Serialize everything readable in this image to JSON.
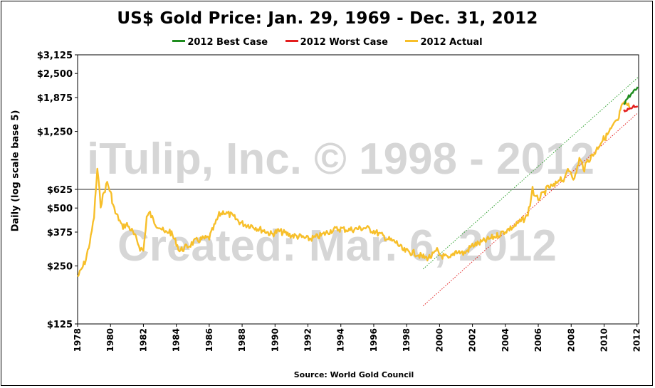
{
  "chart_data": {
    "type": "line",
    "title": "US$ Gold Price: Jan. 29, 1969 - Dec. 31, 2012",
    "ylabel": "Daily (log scale base 5)",
    "xlabel": "",
    "source": "Source: World Gold Council",
    "y_scale": "log5",
    "ylim": [
      125,
      3125
    ],
    "xlim": [
      1978,
      2012.1
    ],
    "y_ticks": [
      {
        "value": 125,
        "label": "$125"
      },
      {
        "value": 250,
        "label": "$250"
      },
      {
        "value": 375,
        "label": "$375"
      },
      {
        "value": 500,
        "label": "$500"
      },
      {
        "value": 625,
        "label": "$625"
      },
      {
        "value": 1250,
        "label": "$1,250"
      },
      {
        "value": 1875,
        "label": "$1,875"
      },
      {
        "value": 2500,
        "label": "$2,500"
      },
      {
        "value": 3125,
        "label": "$3,125"
      }
    ],
    "x_ticks": [
      "1978",
      "1980",
      "1982",
      "1984",
      "1986",
      "1988",
      "1990",
      "1992",
      "1994",
      "1996",
      "1998",
      "2000",
      "2002",
      "2004",
      "2006",
      "2008",
      "2010",
      "2012"
    ],
    "reference_line": {
      "value": 625
    },
    "legend": [
      {
        "name": "2012 Best Case",
        "color": "#1e8c1e"
      },
      {
        "name": "2012 Worst Case",
        "color": "#e31e1e"
      },
      {
        "name": "2012 Actual",
        "color": "#f7bf2a"
      }
    ],
    "series": [
      {
        "name": "2012 Actual",
        "color": "#f7bf2a",
        "x": [
          1978.0,
          1978.2,
          1978.5,
          1978.8,
          1979.0,
          1979.2,
          1979.4,
          1979.6,
          1979.8,
          1979.95,
          1980.05,
          1980.15,
          1980.3,
          1980.5,
          1980.7,
          1981.0,
          1981.3,
          1981.6,
          1981.8,
          1982.0,
          1982.2,
          1982.4,
          1982.6,
          1982.8,
          1983.0,
          1983.3,
          1983.6,
          1984.0,
          1984.2,
          1984.5,
          1984.8,
          1985.0,
          1985.3,
          1985.6,
          1986.0,
          1986.3,
          1986.6,
          1986.9,
          1987.0,
          1987.3,
          1987.6,
          1987.9,
          1988.2,
          1988.6,
          1989.0,
          1989.4,
          1989.8,
          1990.2,
          1990.6,
          1991.0,
          1991.5,
          1992.0,
          1992.4,
          1992.8,
          1993.2,
          1993.5,
          1994.0,
          1994.5,
          1995.0,
          1995.5,
          1996.0,
          1996.5,
          1997.0,
          1997.4,
          1997.8,
          1998.2,
          1998.6,
          1998.9,
          1999.2,
          1999.5,
          1999.7,
          1999.85,
          2000.0,
          2000.3,
          2000.6,
          2001.0,
          2001.5,
          2002.0,
          2002.5,
          2003.0,
          2003.5,
          2004.0,
          2004.5,
          2005.0,
          2005.3,
          2005.5,
          2005.65,
          2005.8,
          2006.0,
          2006.3,
          2006.6,
          2007.0,
          2007.3,
          2007.6,
          2007.8,
          2008.0,
          2008.2,
          2008.5,
          2008.8,
          2009.0,
          2009.4,
          2009.8,
          2010.2,
          2010.6,
          2010.9,
          2011.0,
          2011.3,
          2011.6
        ],
        "y": [
          220,
          235,
          270,
          350,
          450,
          800,
          520,
          600,
          680,
          620,
          580,
          520,
          470,
          440,
          400,
          410,
          380,
          340,
          310,
          300,
          450,
          470,
          430,
          410,
          400,
          370,
          380,
          330,
          300,
          310,
          320,
          330,
          340,
          345,
          350,
          400,
          460,
          480,
          470,
          460,
          440,
          420,
          410,
          405,
          390,
          380,
          365,
          380,
          370,
          360,
          355,
          345,
          350,
          360,
          375,
          385,
          390,
          385,
          390,
          395,
          380,
          360,
          340,
          330,
          300,
          295,
          290,
          280,
          275,
          280,
          290,
          300,
          285,
          280,
          270,
          300,
          290,
          320,
          330,
          345,
          360,
          380,
          400,
          430,
          450,
          520,
          640,
          560,
          560,
          590,
          640,
          650,
          720,
          690,
          800,
          770,
          700,
          900,
          800,
          880,
          960,
          1100,
          1200,
          1350,
          1450,
          1650,
          1750,
          1650
        ]
      },
      {
        "name": "2012 Best Case",
        "color": "#1e8c1e",
        "x": [
          2011.2,
          2011.5,
          2011.8,
          2012.05
        ],
        "y": [
          1750,
          1900,
          2000,
          2130
        ]
      },
      {
        "name": "2012 Worst Case",
        "color": "#e31e1e",
        "x": [
          2011.2,
          2011.5,
          2011.8,
          2012.05
        ],
        "y": [
          1600,
          1640,
          1700,
          1690
        ]
      }
    ],
    "trend_lines": [
      {
        "name": "upper channel",
        "color": "#2ca02c",
        "x": [
          1999.0,
          2012.05
        ],
        "y": [
          241,
          2380
        ]
      },
      {
        "name": "lower channel",
        "color": "#e31e1e",
        "x": [
          1999.0,
          2012.05
        ],
        "y": [
          155,
          1560
        ]
      }
    ],
    "watermark": [
      "iTulip, Inc. © 1998 - 2012",
      "Created: Mar. 6, 2012"
    ]
  }
}
